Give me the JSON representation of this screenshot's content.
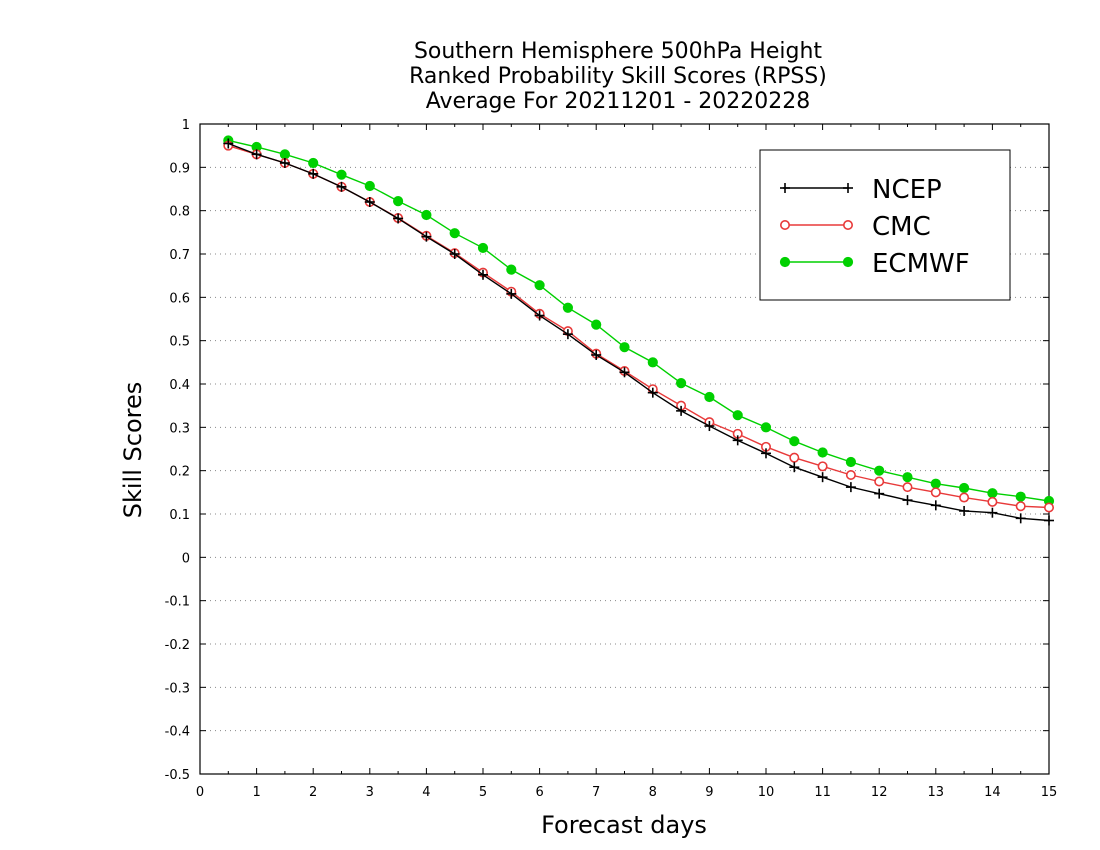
{
  "chart_data": {
    "type": "line",
    "title": [
      "Southern Hemisphere 500hPa Height",
      "Ranked Probability Skill Scores (RPSS)",
      "Average For 20211201 - 20220228"
    ],
    "xlabel": "Forecast days",
    "ylabel": "Skill Scores",
    "xlim": [
      0,
      15
    ],
    "ylim": [
      -0.5,
      1
    ],
    "x_ticks": [
      "0",
      "1",
      "2",
      "3",
      "4",
      "5",
      "6",
      "7",
      "8",
      "9",
      "10",
      "11",
      "12",
      "13",
      "14",
      "15"
    ],
    "y_ticks": [
      "-0.5",
      "-0.4",
      "-0.3",
      "-0.2",
      "-0.1",
      "0",
      "0.1",
      "0.2",
      "0.3",
      "0.4",
      "0.5",
      "0.6",
      "0.7",
      "0.8",
      "0.9",
      "1"
    ],
    "grid": "horizontal dotted",
    "legend_position": "top-right",
    "x": [
      0.5,
      1,
      1.5,
      2,
      2.5,
      3,
      3.5,
      4,
      4.5,
      5,
      5.5,
      6,
      6.5,
      7,
      7.5,
      8,
      8.5,
      9,
      9.5,
      10,
      10.5,
      11,
      11.5,
      12,
      12.5,
      13,
      13.5,
      14,
      14.5,
      15
    ],
    "series": [
      {
        "name": "NCEP",
        "color": "#000000",
        "marker": "plus",
        "values": [
          0.955,
          0.93,
          0.91,
          0.885,
          0.855,
          0.82,
          0.782,
          0.74,
          0.7,
          0.652,
          0.608,
          0.558,
          0.515,
          0.467,
          0.427,
          0.38,
          0.338,
          0.303,
          0.27,
          0.24,
          0.208,
          0.185,
          0.162,
          0.147,
          0.132,
          0.12,
          0.107,
          0.103,
          0.09,
          0.085
        ]
      },
      {
        "name": "CMC",
        "color": "#e83a3a",
        "marker": "open-circle",
        "values": [
          0.95,
          0.93,
          0.91,
          0.885,
          0.855,
          0.82,
          0.783,
          0.742,
          0.702,
          0.657,
          0.613,
          0.562,
          0.522,
          0.47,
          0.43,
          0.388,
          0.35,
          0.312,
          0.285,
          0.255,
          0.23,
          0.21,
          0.19,
          0.175,
          0.162,
          0.15,
          0.138,
          0.128,
          0.118,
          0.115
        ]
      },
      {
        "name": "ECMWF",
        "color": "#00d000",
        "marker": "filled-circle",
        "values": [
          0.962,
          0.947,
          0.93,
          0.91,
          0.883,
          0.857,
          0.822,
          0.79,
          0.748,
          0.714,
          0.664,
          0.628,
          0.576,
          0.537,
          0.485,
          0.45,
          0.402,
          0.37,
          0.328,
          0.3,
          0.268,
          0.242,
          0.22,
          0.2,
          0.185,
          0.17,
          0.16,
          0.148,
          0.14,
          0.13
        ]
      }
    ]
  }
}
